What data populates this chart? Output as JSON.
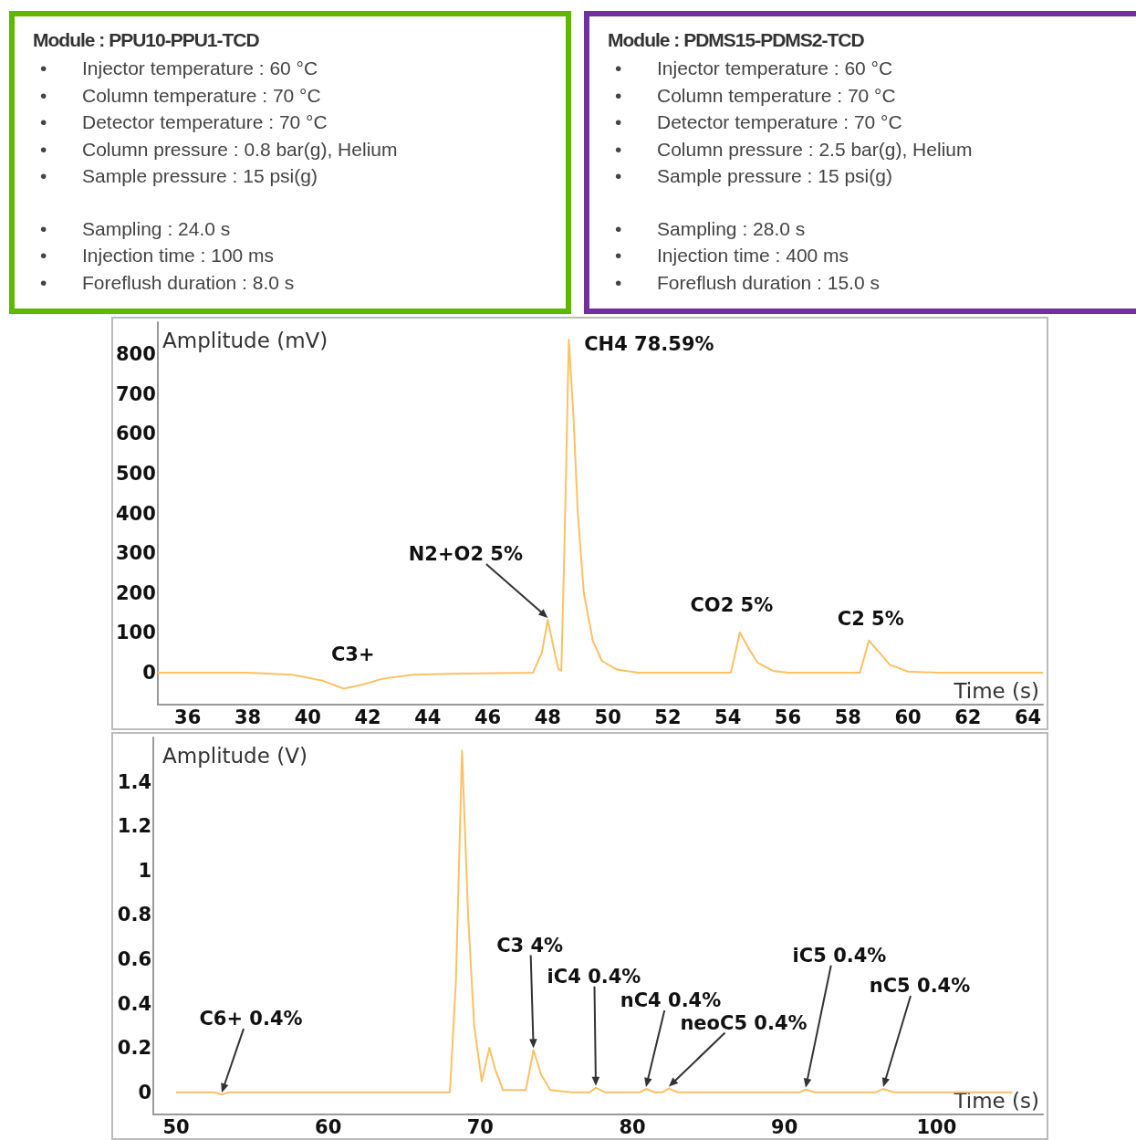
{
  "chart_data": [
    {
      "type": "other",
      "title": "Module : PPU10-PPU1-TCD",
      "annotations": [
        "•\tInjector temperature : 60 °C",
        "•\tColumn temperature : 70 °C",
        "•\tDetector temperature : 70 °C",
        "•\tColumn pressure : 0.8 bar(g), Helium",
        "•\tSample pressure : 15 psi(g)",
        "•\tSampling : 24.0 s",
        "•\tInjection time : 100 ms",
        "•\tForeflush duration : 8.0 s"
      ]
    },
    {
      "type": "other",
      "title": "Module : PDMS15-PDMS2-TCD",
      "annotations": [
        "•\tInjector temperature : 60 °C",
        "•\tColumn temperature : 70 °C",
        "•\tDetector temperature : 70 °C",
        "•\tColumn pressure : 2.5 bar(g), Helium",
        "•\tSample pressure : 15 psi(g)",
        "•\tSampling : 28.0 s",
        "•\tInjection time : 400 ms",
        "•\tForeflush duration : 15.0 s"
      ]
    },
    {
      "type": "line",
      "xlabel": "Time (s)",
      "ylabel": "Amplitude (mV)",
      "xlim": [
        35,
        64.5
      ],
      "ylim": [
        -80,
        880
      ],
      "xticks": [
        36,
        38,
        40,
        42,
        44,
        46,
        48,
        50,
        52,
        54,
        56,
        58,
        60,
        62,
        64
      ],
      "yticks": [
        0,
        100,
        200,
        300,
        400,
        500,
        600,
        700,
        800
      ],
      "grid": false,
      "marker": "none",
      "series": [
        {
          "color": "#fdc064",
          "x": [
            35,
            38,
            39.5,
            40.5,
            41.2,
            41.8,
            42.5,
            43.5,
            45,
            47.5,
            47.8,
            48.0,
            48.2,
            48.35,
            48.45,
            48.55,
            48.7,
            48.85,
            49.0,
            49.2,
            49.5,
            49.8,
            50.3,
            51,
            54.1,
            54.25,
            54.4,
            54.7,
            55.0,
            55.5,
            56,
            58.4,
            58.55,
            58.7,
            59.0,
            59.4,
            60,
            61,
            64.5
          ],
          "values": [
            0,
            0,
            -5,
            -20,
            -40,
            -30,
            -15,
            -5,
            -2,
            0,
            50,
            133,
            60,
            10,
            5,
            300,
            836,
            650,
            400,
            200,
            80,
            30,
            8,
            0,
            0,
            50,
            101,
            60,
            25,
            5,
            0,
            0,
            40,
            81,
            55,
            20,
            3,
            0,
            0
          ]
        }
      ],
      "annotations": [
        {
          "text": "C3+",
          "x": 41.2,
          "y": -40
        },
        {
          "text": "N2+O2 5%",
          "x": 48.0,
          "y": 133
        },
        {
          "text": "CH4 78.59%",
          "x": 48.7,
          "y": 836
        },
        {
          "text": "CO2 5%",
          "x": 54.4,
          "y": 101
        },
        {
          "text": "C2 5%",
          "x": 58.7,
          "y": 81
        }
      ]
    },
    {
      "type": "line",
      "xlabel": "Time (s)",
      "ylabel": "Amplitude (V)",
      "xlim": [
        48.5,
        107
      ],
      "ylim": [
        -0.1,
        1.6
      ],
      "xticks": [
        50,
        60,
        70,
        80,
        90,
        100
      ],
      "yticks": [
        0,
        0.2,
        0.4,
        0.6,
        0.8,
        1,
        1.2,
        1.4
      ],
      "grid": false,
      "marker": "none",
      "series": [
        {
          "color": "#fdc064",
          "x": [
            50,
            52.5,
            53,
            53.5,
            61,
            68,
            68.4,
            68.8,
            69.2,
            69.6,
            70.1,
            70.6,
            71.0,
            71.5,
            73,
            73.5,
            74,
            74.6,
            76,
            77.2,
            77.6,
            78.2,
            80.5,
            80.9,
            81.5,
            82,
            82.4,
            83,
            85,
            91,
            91.4,
            92,
            96,
            96.5,
            97.2,
            105
          ],
          "values": [
            0,
            0,
            -0.01,
            0,
            0,
            0,
            0.5,
            1.54,
            0.8,
            0.3,
            0.05,
            0.2,
            0.1,
            0.01,
            0.01,
            0.19,
            0.08,
            0.01,
            0,
            0,
            0.02,
            0,
            0,
            0.015,
            0,
            0,
            0.017,
            0,
            0,
            0,
            0.012,
            0,
            0,
            0.015,
            0,
            0
          ]
        }
      ],
      "annotations": [
        {
          "text": "C6+ 0.4%",
          "x": 53,
          "y": -0.01
        },
        {
          "text": "C3 4%",
          "x": 73.5,
          "y": 0.19
        },
        {
          "text": "iC4 0.4%",
          "x": 77.6,
          "y": 0.02
        },
        {
          "text": "nC4 0.4%",
          "x": 80.9,
          "y": 0.015
        },
        {
          "text": "neoC5 0.4%",
          "x": 82.4,
          "y": 0.017
        },
        {
          "text": "iC5 0.4%",
          "x": 91.4,
          "y": 0.012
        },
        {
          "text": "nC5 0.4%",
          "x": 96.5,
          "y": 0.015
        }
      ]
    }
  ]
}
